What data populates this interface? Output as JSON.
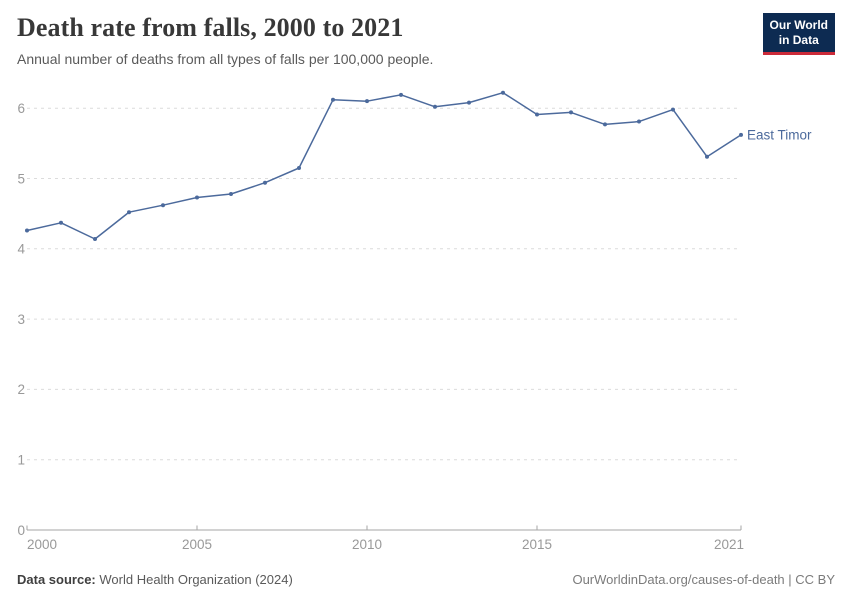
{
  "header": {
    "title": "Death rate from falls, 2000 to 2021",
    "subtitle": "Annual number of deaths from all types of falls per 100,000 people.",
    "logo": {
      "line1": "Our World",
      "line2": "in Data",
      "bg_color": "#0d2b52",
      "accent_color": "#cb2a39",
      "text_color": "#ffffff"
    }
  },
  "chart_data": {
    "type": "line",
    "title": "Death rate from falls, 2000 to 2021",
    "xlabel": "",
    "ylabel": "",
    "x": [
      2000,
      2001,
      2002,
      2003,
      2004,
      2005,
      2006,
      2007,
      2008,
      2009,
      2010,
      2011,
      2012,
      2013,
      2014,
      2015,
      2016,
      2017,
      2018,
      2019,
      2020,
      2021
    ],
    "series": [
      {
        "name": "East Timor",
        "color": "#4C6A9C",
        "values": [
          4.26,
          4.37,
          4.14,
          4.52,
          4.62,
          4.73,
          4.78,
          4.94,
          5.15,
          6.12,
          6.1,
          6.19,
          6.02,
          6.08,
          6.22,
          5.91,
          5.94,
          5.77,
          5.81,
          5.98,
          5.31,
          5.62
        ]
      }
    ],
    "xlim": [
      2000,
      2021
    ],
    "ylim": [
      0,
      6.6
    ],
    "x_ticks": [
      2000,
      2005,
      2010,
      2015,
      2021
    ],
    "y_ticks": [
      0,
      1,
      2,
      3,
      4,
      5,
      6
    ],
    "grid": "horizontal-dashed",
    "legend_position": "end-of-line-label",
    "axis_label_color": "#999999",
    "gridline_color": "#dcdcdc",
    "axis_line_color": "#a5a5a5"
  },
  "footer": {
    "source_label": "Data source:",
    "source_text": "World Health Organization (2024)",
    "credit": "OurWorldinData.org/causes-of-death | CC BY"
  }
}
